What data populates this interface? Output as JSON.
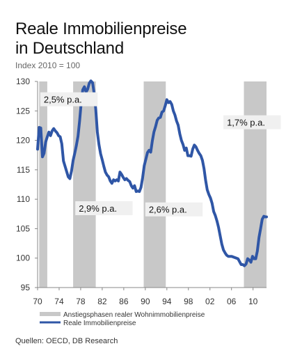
{
  "header": {
    "title_line1": "Reale Immobilienpreise",
    "title_line2": "in Deutschland",
    "subtitle": "Index 2010 = 100"
  },
  "footer": {
    "sources": "Quellen: OECD, DB Research"
  },
  "chart_data": {
    "type": "line",
    "xlim": [
      1970,
      2012.5
    ],
    "ylim": [
      95,
      130
    ],
    "y_ticks": [
      95,
      100,
      105,
      110,
      115,
      120,
      125,
      130
    ],
    "x_tick_values": [
      1970,
      1974,
      1978,
      1982,
      1986,
      1990,
      1994,
      1998,
      2002,
      2006,
      2010
    ],
    "x_tick_labels": [
      "70",
      "74",
      "78",
      "82",
      "86",
      "90",
      "94",
      "98",
      "02",
      "06",
      "10"
    ],
    "grid": false,
    "legend_position": "bottom",
    "shaded_periods": [
      [
        1970.3,
        1971.8
      ],
      [
        1976.6,
        1980.8
      ],
      [
        1989.7,
        1993.8
      ],
      [
        2008.3,
        2012.5
      ]
    ],
    "annotations": [
      {
        "text": "2,5% p.a.",
        "x": 1970.5,
        "y": 126.5
      },
      {
        "text": "2,9% p.a.",
        "x": 1977.0,
        "y": 108.0
      },
      {
        "text": "2,6% p.a.",
        "x": 1990.0,
        "y": 107.8
      },
      {
        "text": "1,7% p.a.",
        "x": 2004.5,
        "y": 122.6
      }
    ],
    "legend": [
      {
        "label": "Anstiegsphasen realer Wohnimmobilienpreise",
        "kind": "band",
        "color": "#c8c8c8"
      },
      {
        "label": "Reale Immobilienpreise",
        "kind": "line",
        "color": "#2f56a6"
      }
    ],
    "series": [
      {
        "color": "#2f56a6",
        "x": [
          1970.0,
          1970.3,
          1970.6,
          1970.9,
          1971.2,
          1971.5,
          1971.8,
          1972.1,
          1972.4,
          1972.7,
          1973.0,
          1973.3,
          1973.6,
          1973.9,
          1974.2,
          1974.5,
          1974.8,
          1975.1,
          1975.4,
          1975.7,
          1976.0,
          1976.3,
          1976.6,
          1976.9,
          1977.2,
          1977.5,
          1977.8,
          1978.1,
          1978.4,
          1978.7,
          1979.0,
          1979.3,
          1979.6,
          1979.9,
          1980.2,
          1980.5,
          1980.8,
          1981.1,
          1981.4,
          1981.7,
          1982.0,
          1982.3,
          1982.6,
          1982.9,
          1983.2,
          1983.5,
          1983.8,
          1984.1,
          1984.4,
          1984.7,
          1985.0,
          1985.3,
          1985.6,
          1985.9,
          1986.2,
          1986.5,
          1986.8,
          1987.1,
          1987.4,
          1987.7,
          1988.0,
          1988.3,
          1988.6,
          1988.9,
          1989.2,
          1989.5,
          1989.8,
          1990.1,
          1990.4,
          1990.7,
          1991.0,
          1991.3,
          1991.6,
          1991.9,
          1992.2,
          1992.5,
          1992.8,
          1993.1,
          1993.4,
          1993.7,
          1994.0,
          1994.3,
          1994.6,
          1994.9,
          1995.2,
          1995.5,
          1995.8,
          1996.1,
          1996.4,
          1996.7,
          1997.0,
          1997.3,
          1997.6,
          1997.9,
          1998.2,
          1998.5,
          1998.8,
          1999.1,
          1999.4,
          1999.7,
          2000.0,
          2000.3,
          2000.6,
          2000.9,
          2001.2,
          2001.5,
          2001.8,
          2002.1,
          2002.4,
          2002.7,
          2003.0,
          2003.3,
          2003.6,
          2003.9,
          2004.2,
          2004.5,
          2004.8,
          2005.1,
          2005.4,
          2005.7,
          2006.0,
          2006.3,
          2006.6,
          2006.9,
          2007.2,
          2007.5,
          2007.8,
          2008.1,
          2008.4,
          2008.7,
          2009.0,
          2009.3,
          2009.6,
          2009.9,
          2010.2,
          2010.5,
          2010.8,
          2011.1,
          2011.4,
          2011.7,
          2012.0,
          2012.3,
          2012.5
        ],
        "y": [
          118.5,
          122.2,
          122.1,
          117.2,
          117.8,
          119.7,
          120.6,
          121.4,
          120.8,
          121.6,
          122.0,
          121.6,
          121.3,
          120.8,
          120.6,
          119.4,
          116.5,
          115.6,
          114.7,
          113.8,
          113.5,
          114.8,
          116.6,
          117.8,
          119.1,
          120.7,
          123.3,
          126.4,
          128.6,
          129.1,
          128.2,
          128.7,
          129.7,
          130.1,
          129.8,
          128.0,
          125.3,
          121.4,
          119.3,
          117.7,
          116.7,
          115.6,
          114.6,
          114.1,
          113.8,
          113.1,
          112.7,
          113.3,
          113.1,
          113.3,
          113.1,
          114.6,
          114.2,
          113.7,
          113.3,
          113.5,
          113.2,
          113.0,
          112.3,
          111.9,
          112.3,
          111.3,
          111.4,
          111.3,
          112.0,
          113.7,
          115.7,
          116.8,
          117.9,
          118.3,
          118.0,
          119.9,
          121.4,
          122.3,
          123.4,
          123.8,
          123.9,
          124.8,
          125.0,
          125.9,
          126.9,
          126.4,
          126.6,
          126.1,
          125.0,
          124.3,
          123.3,
          122.6,
          121.1,
          120.0,
          119.3,
          118.3,
          118.7,
          117.4,
          117.4,
          117.3,
          118.5,
          119.2,
          118.9,
          118.3,
          117.8,
          117.4,
          116.6,
          115.2,
          113.2,
          111.6,
          110.8,
          110.2,
          109.3,
          107.9,
          107.2,
          106.3,
          105.2,
          103.8,
          102.4,
          101.4,
          100.9,
          100.5,
          100.3,
          100.3,
          100.3,
          100.2,
          100.1,
          100.0,
          99.9,
          99.4,
          98.9,
          98.9,
          98.7,
          99.0,
          99.9,
          99.7,
          99.3,
          100.3,
          99.9,
          99.9,
          101.2,
          103.5,
          105.0,
          106.6,
          107.1,
          107.0,
          107.0
        ]
      }
    ]
  }
}
